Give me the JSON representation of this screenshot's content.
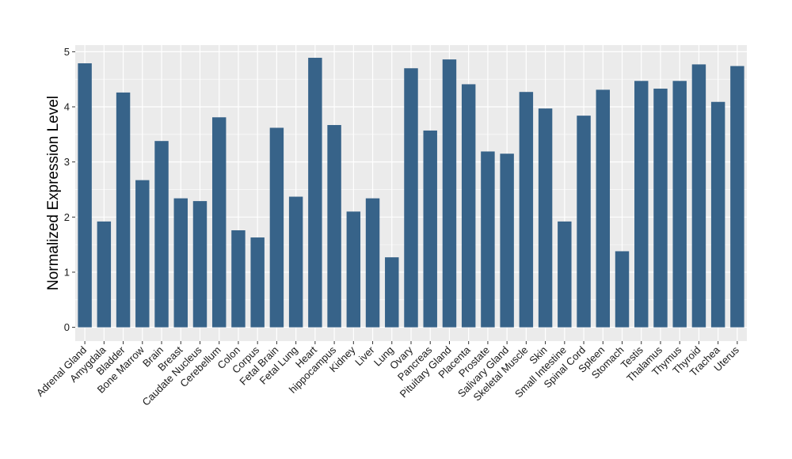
{
  "chart_data": {
    "type": "bar",
    "title": "",
    "xlabel": "",
    "ylabel": "Normalized Expression Level",
    "ylim": [
      -0.25,
      5.12
    ],
    "yticks": [
      0,
      1,
      2,
      3,
      4,
      5
    ],
    "grid": true,
    "legend": "none",
    "colors": {
      "bar": "#376389",
      "panel": "#ebebeb",
      "grid": "#ffffff"
    },
    "categories": [
      "Adrenal Gland",
      "Amygdala",
      "Bladder",
      "Bone Marrow",
      "Brain",
      "Breast",
      "Caudate Nucleus",
      "Cerebellum",
      "Colon",
      "Corpus",
      "Fetal Brain",
      "Fetal Lung",
      "Heart",
      "hippocampus",
      "Kidney",
      "Liver",
      "Lung",
      "Ovary",
      "Pancreas",
      "Pituitary Gland",
      "Placenta",
      "Prostate",
      "Salivary Gland",
      "Skeletal Muscle",
      "Skin",
      "Small Intestine",
      "Spinal Cord",
      "Spleen",
      "Stomach",
      "Testis",
      "Thalamus",
      "Thymus",
      "Thyroid",
      "Trachea",
      "Uterus"
    ],
    "values": [
      4.79,
      1.92,
      4.26,
      2.67,
      3.38,
      2.34,
      2.29,
      3.81,
      1.76,
      1.63,
      3.62,
      2.37,
      4.89,
      3.67,
      2.1,
      2.34,
      1.27,
      4.7,
      3.57,
      4.86,
      4.41,
      3.19,
      3.15,
      4.27,
      3.97,
      1.92,
      3.84,
      4.31,
      1.38,
      4.47,
      4.33,
      4.47,
      4.77,
      4.09,
      4.74
    ]
  }
}
